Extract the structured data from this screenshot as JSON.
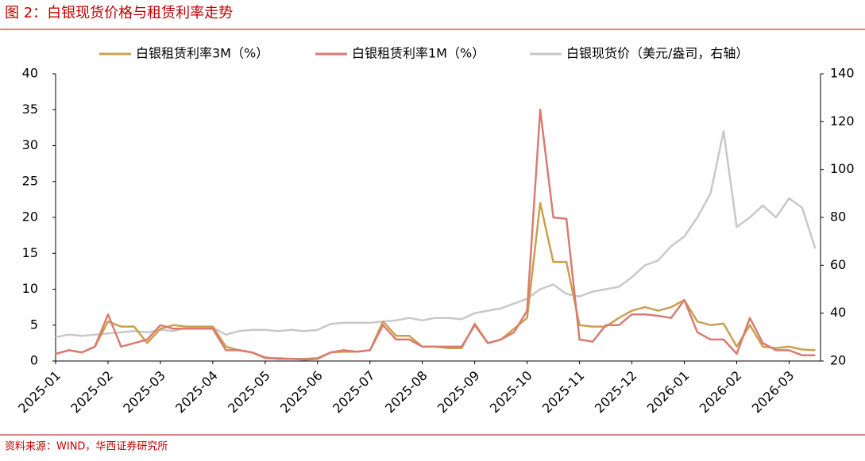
{
  "chart_data": {
    "type": "line",
    "title": "图 2：白银现货价格与租赁利率走势",
    "source": "资料来源：WIND，华西证券研究所",
    "categories": [
      "2025-01",
      null,
      null,
      null,
      "2025-02",
      null,
      null,
      null,
      "2025-03",
      null,
      null,
      null,
      "2025-04",
      null,
      null,
      null,
      "2025-05",
      null,
      null,
      null,
      "2025-06",
      null,
      null,
      null,
      "2025-07",
      null,
      null,
      null,
      "2025-08",
      null,
      null,
      null,
      "2025-09",
      null,
      null,
      null,
      "2025-10",
      null,
      null,
      null,
      "2025-11",
      null,
      null,
      null,
      "2025-12",
      null,
      null,
      null,
      "2026-01",
      null,
      null,
      null,
      "2026-02",
      null,
      null,
      null,
      "2026-03",
      null,
      null
    ],
    "ylim": [
      0,
      40
    ],
    "yticks": [
      0,
      5,
      10,
      15,
      20,
      25,
      30,
      35,
      40
    ],
    "y2lim": [
      20,
      140
    ],
    "y2ticks": [
      20,
      40,
      60,
      80,
      100,
      120,
      140
    ],
    "legend": "top",
    "series": [
      {
        "name": "白银租赁利率3M（%）",
        "color": "#c9a04f",
        "values": [
          1,
          1.5,
          1.2,
          2,
          5.5,
          4.8,
          4.8,
          2.5,
          4.5,
          5,
          4.8,
          4.8,
          4.8,
          2,
          1.5,
          1.2,
          0.4,
          0.4,
          0.3,
          0.3,
          0.4,
          1.2,
          1.3,
          1.3,
          1.5,
          5.5,
          3.5,
          3.5,
          2,
          2,
          1.8,
          1.8,
          5.2,
          2.5,
          3,
          4.5,
          6,
          22,
          13.8,
          13.8,
          5,
          4.8,
          4.8,
          6,
          7,
          7.5,
          7,
          7.5,
          8.5,
          5.5,
          5,
          5.2,
          2,
          5,
          2,
          1.8,
          2,
          1.6,
          1.5
        ]
      },
      {
        "name": "白银租赁利率1M（%）",
        "color": "#d97b72",
        "values": [
          1,
          1.5,
          1.2,
          2,
          6.5,
          2,
          2.5,
          3,
          5,
          4.5,
          4.5,
          4.5,
          4.5,
          1.5,
          1.5,
          1.2,
          0.5,
          0.3,
          0.3,
          0.2,
          0.3,
          1.2,
          1.5,
          1.3,
          1.5,
          5,
          3,
          3,
          2,
          2,
          2,
          2,
          5,
          2.5,
          3,
          4,
          7,
          35,
          20,
          19.8,
          3,
          2.7,
          5,
          5,
          6.5,
          6.5,
          6.3,
          6,
          8.5,
          4,
          3,
          3,
          1,
          6,
          2.5,
          1.5,
          1.5,
          0.8,
          0.8
        ]
      },
      {
        "name": "白银现货价（美元/盎司，右轴）",
        "color": "#c8c8c8",
        "axis": "y2",
        "values": [
          30,
          31,
          30.5,
          31,
          31.5,
          32,
          32.5,
          32,
          33,
          32.5,
          34,
          33.5,
          34,
          31,
          32.5,
          33,
          33,
          32.5,
          33,
          32.5,
          33,
          35.5,
          36,
          36,
          36,
          36.5,
          37,
          38,
          37,
          38,
          38,
          37.5,
          40,
          41,
          42,
          44,
          46,
          50,
          52,
          48,
          47,
          49,
          50,
          51,
          55,
          60,
          62,
          68,
          72,
          80,
          90,
          116,
          76,
          80,
          85,
          80,
          88,
          84,
          67
        ]
      }
    ]
  }
}
